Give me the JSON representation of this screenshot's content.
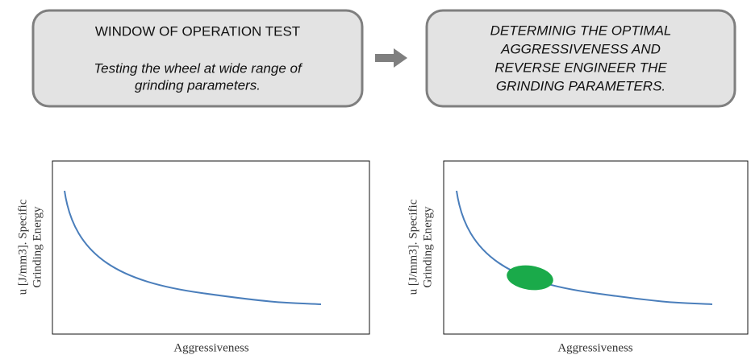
{
  "boxes": [
    {
      "title": "WINDOW OF OPERATION TEST",
      "lines": [
        "Testing the wheel at wide range of",
        "grinding parameters."
      ]
    },
    {
      "lines": [
        "DETERMINIG THE OPTIMAL",
        "AGGRESSIVENESS AND",
        "REVERSE ENGINEER THE",
        "GRINDING PARAMETERS."
      ]
    }
  ],
  "panels": [
    {
      "y_label": [
        "u [J/mm3]. Specific",
        "Grinding Energy"
      ],
      "x_label": "Aggressiveness"
    },
    {
      "y_label": [
        "u [J/mm3]. Specific",
        "Grinding Energy"
      ],
      "x_label": "Aggressiveness"
    }
  ]
}
